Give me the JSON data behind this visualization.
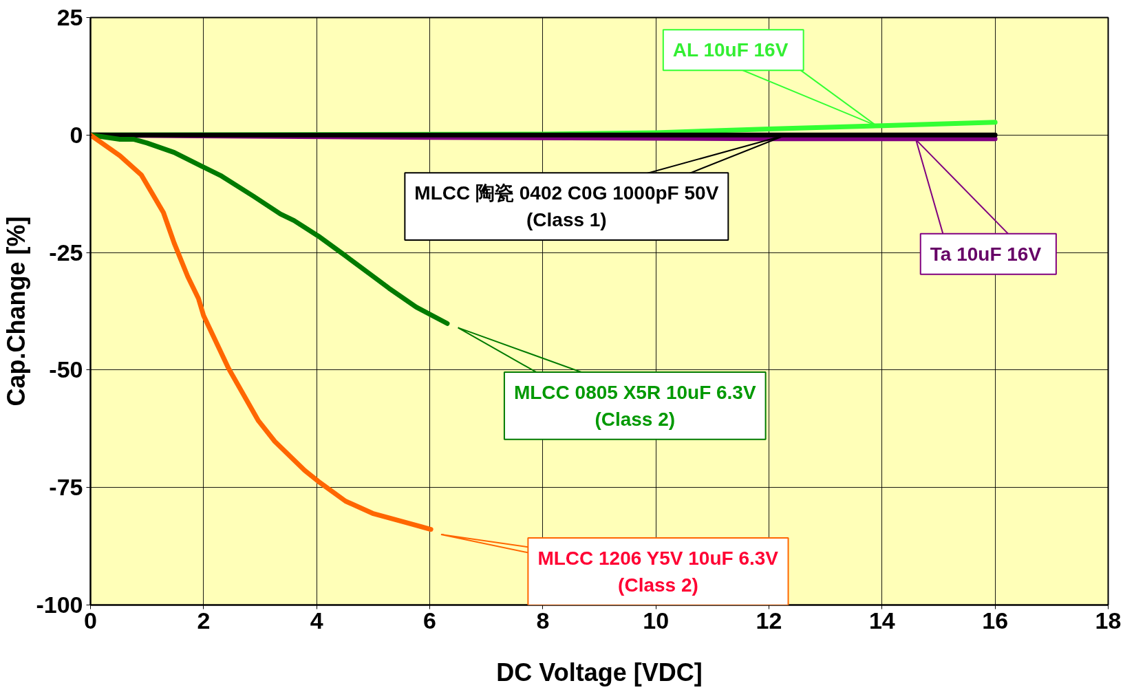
{
  "chart_data": {
    "type": "line",
    "xlabel": "DC Voltage [VDC]",
    "ylabel": "Cap.Change [%]",
    "xlim": [
      0,
      18
    ],
    "ylim": [
      -100,
      25
    ],
    "xticks": [
      0,
      2,
      4,
      6,
      8,
      10,
      12,
      14,
      16,
      18
    ],
    "yticks": [
      -100,
      -75,
      -50,
      -25,
      0,
      25
    ],
    "grid": true,
    "marker": "none",
    "line_style": "solid",
    "series": [
      {
        "name": "AL  10uF 16V",
        "color": "#33ff33",
        "x": [
          0,
          8,
          10,
          12,
          14,
          16
        ],
        "values": [
          0,
          0.2,
          0.5,
          1.3,
          2,
          2.7
        ]
      },
      {
        "name": "Ta  10uF 16V",
        "color": "#800080",
        "x": [
          0,
          6,
          12,
          16
        ],
        "values": [
          0,
          -0.5,
          -0.8,
          -0.8
        ]
      },
      {
        "name": "MLCC 陶瓷 0402 C0G 1000pF 50V\n(Class 1)",
        "color": "#000000",
        "x": [
          0,
          16
        ],
        "values": [
          0,
          0
        ]
      },
      {
        "name": "MLCC 0805 X5R 10uF 6.3V\n(Class 2)",
        "color": "#007a00",
        "x": [
          0,
          0.52,
          0.76,
          1.0,
          1.48,
          1.96,
          2.3,
          2.88,
          3.36,
          3.6,
          4.03,
          4.51,
          4.99,
          5.28,
          5.76,
          6.31
        ],
        "values": [
          0,
          -0.9,
          -0.9,
          -1.7,
          -3.7,
          -6.6,
          -8.6,
          -13,
          -16.8,
          -18.2,
          -21.5,
          -25.7,
          -30,
          -32.6,
          -36.6,
          -40.1
        ]
      },
      {
        "name": "MLCC 1206 Y5V 10uF 6.3V\n(Class 2)",
        "color": "#ff6600",
        "x": [
          0,
          0.52,
          0.9,
          1.29,
          1.48,
          1.72,
          1.91,
          2.0,
          2.44,
          2.97,
          3.26,
          3.79,
          4.03,
          4.51,
          4.99,
          6.02
        ],
        "values": [
          0,
          -4.4,
          -8.5,
          -16.5,
          -23,
          -30.1,
          -34.8,
          -38.4,
          -49.6,
          -60.8,
          -65.2,
          -71.4,
          -73.7,
          -77.9,
          -80.5,
          -83.9
        ]
      }
    ]
  }
}
